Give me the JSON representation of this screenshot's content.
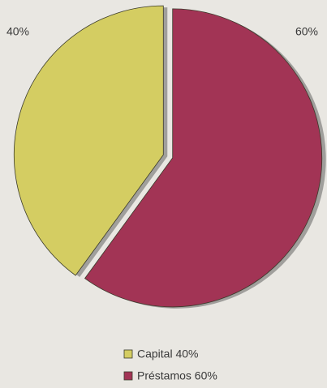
{
  "chart_data": {
    "type": "pie",
    "categories": [
      "Capital 40%",
      "Préstamos 60%"
    ],
    "values": [
      40,
      60
    ],
    "value_labels": [
      "40%",
      "60%"
    ],
    "colors": [
      "#d4cd62",
      "#a23455"
    ],
    "legend": "bottom"
  }
}
